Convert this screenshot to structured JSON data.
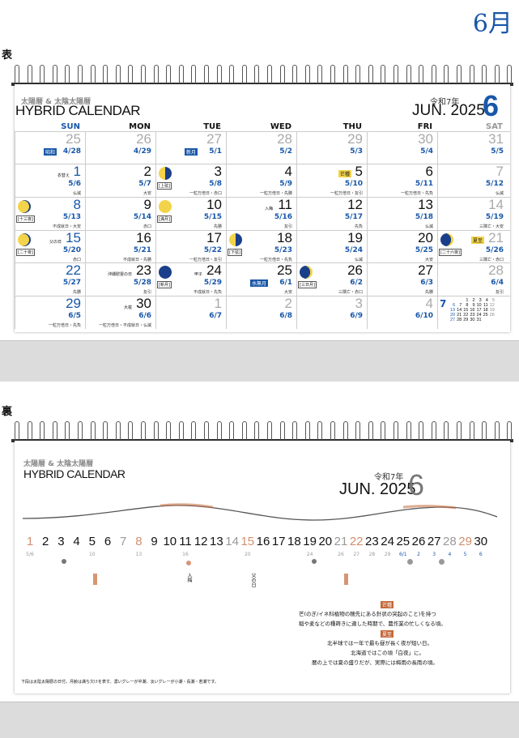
{
  "month_title": "6月",
  "front_label": "表",
  "back_label": "裏",
  "calendar": {
    "subtitle": "太陽暦 & 太陰太陽暦",
    "title": "HYBRID CALENDAR",
    "era": "令和7年",
    "year_month": "JUN. 2025",
    "month_num": "6",
    "days_of_week": [
      "SUN",
      "MON",
      "TUE",
      "WED",
      "THU",
      "FRI",
      "SAT"
    ]
  },
  "colors": {
    "accent_blue": "#1857a8",
    "sunday_blue": "#1857a8",
    "saturday_gray": "#999999",
    "holiday_yellow": "#f2d34a",
    "back_orange": "#c4693a"
  },
  "weeks": [
    [
      {
        "d": "25",
        "ld": "4/28",
        "gray": true,
        "tag": "昭和"
      },
      {
        "d": "26",
        "ld": "4/29",
        "gray": true
      },
      {
        "d": "27",
        "ld": "5/1",
        "gray": true,
        "tag": "新月"
      },
      {
        "d": "28",
        "ld": "5/2",
        "gray": true
      },
      {
        "d": "29",
        "ld": "5/3",
        "gray": true
      },
      {
        "d": "30",
        "ld": "5/4",
        "gray": true
      },
      {
        "d": "31",
        "ld": "5/5",
        "gray": true
      }
    ],
    [
      {
        "d": "1",
        "ld": "5/6",
        "rk": "仏滅",
        "ev": "衣替え"
      },
      {
        "d": "2",
        "ld": "5/7",
        "rk": "大安"
      },
      {
        "d": "3",
        "ld": "5/8",
        "rk": "一粒万倍日・赤口",
        "moon": "half",
        "moon_lbl": "[上弦]"
      },
      {
        "d": "4",
        "ld": "5/9",
        "rk": "一粒万倍日・先勝"
      },
      {
        "d": "5",
        "ld": "5/10",
        "rk": "一粒万倍日・友引",
        "tagy": "芒種"
      },
      {
        "d": "6",
        "ld": "5/11",
        "rk": "一粒万倍日・先負"
      },
      {
        "d": "7",
        "ld": "5/12",
        "rk": "仏滅",
        "gray": true
      }
    ],
    [
      {
        "d": "8",
        "ld": "5/13",
        "rk": "不成就日・大安",
        "moon": "gibbous",
        "moon_lbl": "[十三夜]"
      },
      {
        "d": "9",
        "ld": "5/14",
        "rk": "赤口"
      },
      {
        "d": "10",
        "ld": "5/15",
        "rk": "先勝",
        "moon": "full",
        "moon_lbl": "[満月]"
      },
      {
        "d": "11",
        "ld": "5/16",
        "rk": "友引",
        "ev": "入梅"
      },
      {
        "d": "12",
        "ld": "5/17",
        "rk": "先負"
      },
      {
        "d": "13",
        "ld": "5/18",
        "rk": "仏滅"
      },
      {
        "d": "14",
        "ld": "5/19",
        "rk": "三隣亡・大安",
        "gray": true
      }
    ],
    [
      {
        "d": "15",
        "ld": "5/20",
        "rk": "赤口",
        "ev": "父の日",
        "moon": "gibbous",
        "moon_lbl": "[二十夜]"
      },
      {
        "d": "16",
        "ld": "5/21",
        "rk": "不成就日・先勝"
      },
      {
        "d": "17",
        "ld": "5/22",
        "rk": "一粒万倍日・友引"
      },
      {
        "d": "18",
        "ld": "5/23",
        "rk": "一粒万倍日・先負",
        "moon": "half",
        "moon_lbl": "[下弦]"
      },
      {
        "d": "19",
        "ld": "5/24",
        "rk": "仏滅"
      },
      {
        "d": "20",
        "ld": "5/25",
        "rk": "大安"
      },
      {
        "d": "21",
        "ld": "5/26",
        "rk": "三隣亡・赤口",
        "gray": true,
        "tagy": "夏至",
        "moon": "crescent",
        "moon_lbl": "[二十六夜]"
      }
    ],
    [
      {
        "d": "22",
        "ld": "5/27",
        "rk": "先勝",
        "sun": true
      },
      {
        "d": "23",
        "ld": "5/28",
        "rk": "友引",
        "ev": "沖縄慰霊の日"
      },
      {
        "d": "24",
        "ld": "5/29",
        "rk": "不成就日・先負",
        "ev": "甲子",
        "moon": "new",
        "moon_lbl": "[新月]"
      },
      {
        "d": "25",
        "ld": "6/1",
        "rk": "大安",
        "tag": "水無月"
      },
      {
        "d": "26",
        "ld": "6/2",
        "rk": "三隣亡・赤口",
        "moon": "crescent",
        "moon_lbl": "[三日月]"
      },
      {
        "d": "27",
        "ld": "6/3",
        "rk": "先勝"
      },
      {
        "d": "28",
        "ld": "6/4",
        "rk": "友引",
        "gray": true
      }
    ],
    [
      {
        "d": "29",
        "ld": "6/5",
        "rk": "一粒万倍日・先負",
        "sun": true
      },
      {
        "d": "30",
        "ld": "6/6",
        "rk": "一粒万倍日・不成就日・仏滅",
        "ev": "大祓"
      },
      {
        "d": "1",
        "ld": "6/7",
        "gray": true
      },
      {
        "d": "2",
        "ld": "6/8",
        "gray": true
      },
      {
        "d": "3",
        "ld": "6/9",
        "gray": true
      },
      {
        "d": "4",
        "ld": "6/10",
        "gray": true
      },
      {
        "d": "",
        "ld": ""
      }
    ]
  ],
  "next_month": {
    "label": "7",
    "rows": [
      [
        "",
        "",
        "1",
        "2",
        "3",
        "4",
        "5"
      ],
      [
        "6",
        "7",
        "8",
        "9",
        "10",
        "11",
        "12"
      ],
      [
        "13",
        "14",
        "15",
        "16",
        "17",
        "18",
        "19"
      ],
      [
        "20",
        "21",
        "22",
        "23",
        "24",
        "25",
        "26"
      ],
      [
        "27",
        "28",
        "29",
        "30",
        "31",
        "",
        ""
      ]
    ]
  },
  "back": {
    "strip": [
      {
        "d": "1",
        "ld": "5/6"
      },
      {
        "d": "2",
        "ld": ""
      },
      {
        "d": "3",
        "ld": ""
      },
      {
        "d": "4",
        "ld": ""
      },
      {
        "d": "5",
        "ld": "10"
      },
      {
        "d": "6",
        "ld": ""
      },
      {
        "d": "7",
        "ld": ""
      },
      {
        "d": "8",
        "ld": "13"
      },
      {
        "d": "9",
        "ld": ""
      },
      {
        "d": "10",
        "ld": ""
      },
      {
        "d": "11",
        "ld": "16"
      },
      {
        "d": "12",
        "ld": ""
      },
      {
        "d": "13",
        "ld": ""
      },
      {
        "d": "14",
        "ld": ""
      },
      {
        "d": "15",
        "ld": "20"
      },
      {
        "d": "16",
        "ld": ""
      },
      {
        "d": "17",
        "ld": ""
      },
      {
        "d": "18",
        "ld": ""
      },
      {
        "d": "19",
        "ld": "24"
      },
      {
        "d": "20",
        "ld": ""
      },
      {
        "d": "21",
        "ld": "26"
      },
      {
        "d": "22",
        "ld": "27"
      },
      {
        "d": "23",
        "ld": "28"
      },
      {
        "d": "24",
        "ld": "29"
      },
      {
        "d": "25",
        "ld": "6/1"
      },
      {
        "d": "26",
        "ld": "2"
      },
      {
        "d": "27",
        "ld": "3"
      },
      {
        "d": "28",
        "ld": "4"
      },
      {
        "d": "29",
        "ld": "5"
      },
      {
        "d": "30",
        "ld": "6"
      }
    ],
    "events": [
      "入梅",
      "父の日"
    ],
    "notes": {
      "h1": "芒種",
      "l1": "芒(のぎ/イネ科植物の穂先にある針状の突起のこと)を持つ",
      "l2": "稲や麦などの種蒔きに適した時期で、農作業の忙しくなる頃。",
      "h2": "夏至",
      "l3": "北半球では一年で最も昼が長く夜が短い日。",
      "l4": "北海道ではこの頃「白夜」に。",
      "l5": "暦の上では夏の盛りだが、実際には梅雨の長雨の頃。"
    },
    "footnote": "下段は太陰太陽暦の日付。月齢は満ち欠けを表す。濃いグレーが中潮、淡いグレーが小潮・長潮・若潮です。"
  }
}
